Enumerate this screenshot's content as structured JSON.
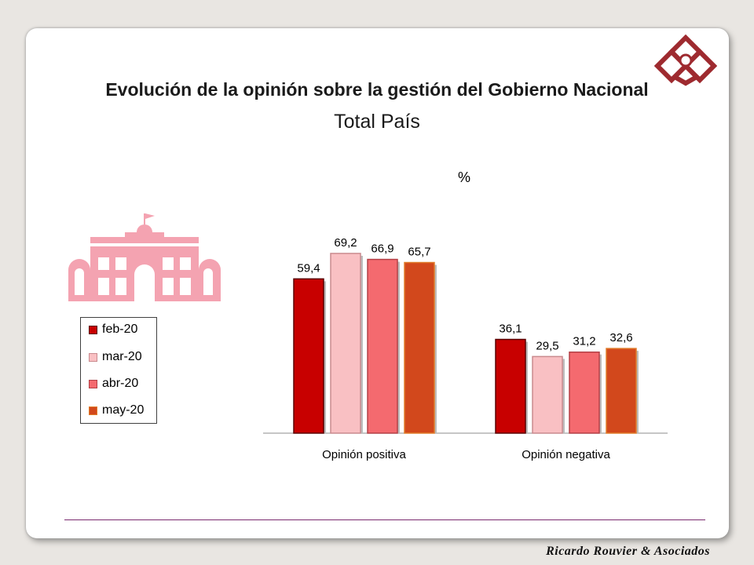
{
  "slide": {
    "title": "Evolución de la opinión sobre la gestión del Gobierno Nacional",
    "subtitle": "Total País",
    "unit": "%",
    "footer": "Ricardo Rouvier & Asociados"
  },
  "icons": {
    "logo": "diamond-grid-logo-icon",
    "building": "casa-rosada-building-icon"
  },
  "colors": {
    "feb-20": "#c80000",
    "mar-20": "#f9c0c3",
    "abr-20": "#f46a6f",
    "may-20": "#d2481c"
  },
  "chart_data": {
    "type": "bar",
    "title": "Evolución de la opinión sobre la gestión del Gobierno Nacional",
    "subtitle": "Total País",
    "ylabel": "%",
    "xlabel": "",
    "categories": [
      "Opinión positiva",
      "Opinión negativa"
    ],
    "series": [
      {
        "name": "feb-20",
        "values": [
          59.4,
          36.1
        ],
        "labels": [
          "59,4",
          "36,1"
        ]
      },
      {
        "name": "mar-20",
        "values": [
          69.2,
          29.5
        ],
        "labels": [
          "69,2",
          "29,5"
        ]
      },
      {
        "name": "abr-20",
        "values": [
          66.9,
          31.2
        ],
        "labels": [
          "66,9",
          "31,2"
        ]
      },
      {
        "name": "may-20",
        "values": [
          65.7,
          32.6
        ],
        "labels": [
          "65,7",
          "32,6"
        ]
      }
    ],
    "ylim": [
      0,
      80
    ],
    "grid": false,
    "legend": "left"
  }
}
